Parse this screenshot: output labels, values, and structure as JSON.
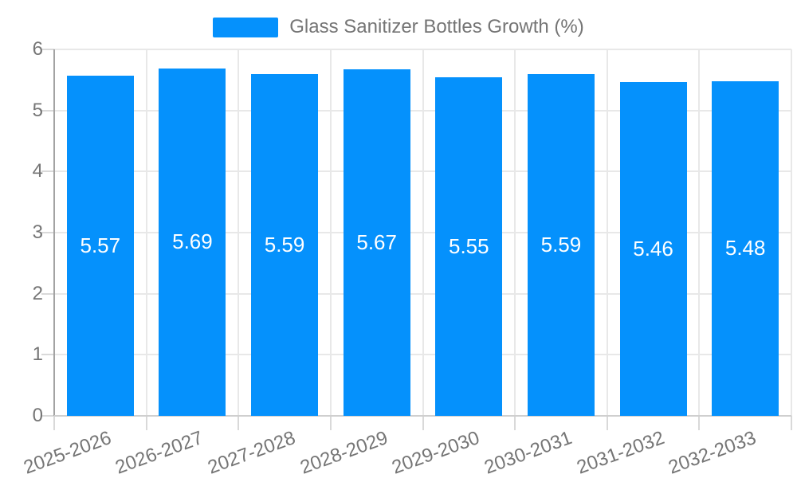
{
  "legend": {
    "label": "Glass Sanitizer Bottles Growth (%)"
  },
  "chart_data": {
    "type": "bar",
    "title": "Glass Sanitizer Bottles Growth (%)",
    "categories": [
      "2025-2026",
      "2026-2027",
      "2027-2028",
      "2028-2029",
      "2029-2030",
      "2030-2031",
      "2031-2032",
      "2032-2033"
    ],
    "series": [
      {
        "name": "Glass Sanitizer Bottles Growth (%)",
        "values": [
          5.57,
          5.69,
          5.59,
          5.67,
          5.55,
          5.59,
          5.46,
          5.48
        ]
      }
    ],
    "value_labels": [
      "5.57",
      "5.69",
      "5.59",
      "5.67",
      "5.55",
      "5.59",
      "5.46",
      "5.48"
    ],
    "xlabel": "",
    "ylabel": "",
    "ylim": [
      0,
      6
    ],
    "y_ticks": [
      0,
      1,
      2,
      3,
      4,
      5,
      6
    ],
    "grid": true,
    "legend_position": "top",
    "value_label_position": "inside-center",
    "colors": {
      "bar": "#0591FC",
      "grid": "#E8E8E8",
      "y_axis": "#A3A3A3",
      "x_axis": "#CFCFCF",
      "tick": "#D9D9D9",
      "text": "#757575",
      "value_text": "#FFFFFF",
      "background": "#FFFFFF"
    }
  }
}
